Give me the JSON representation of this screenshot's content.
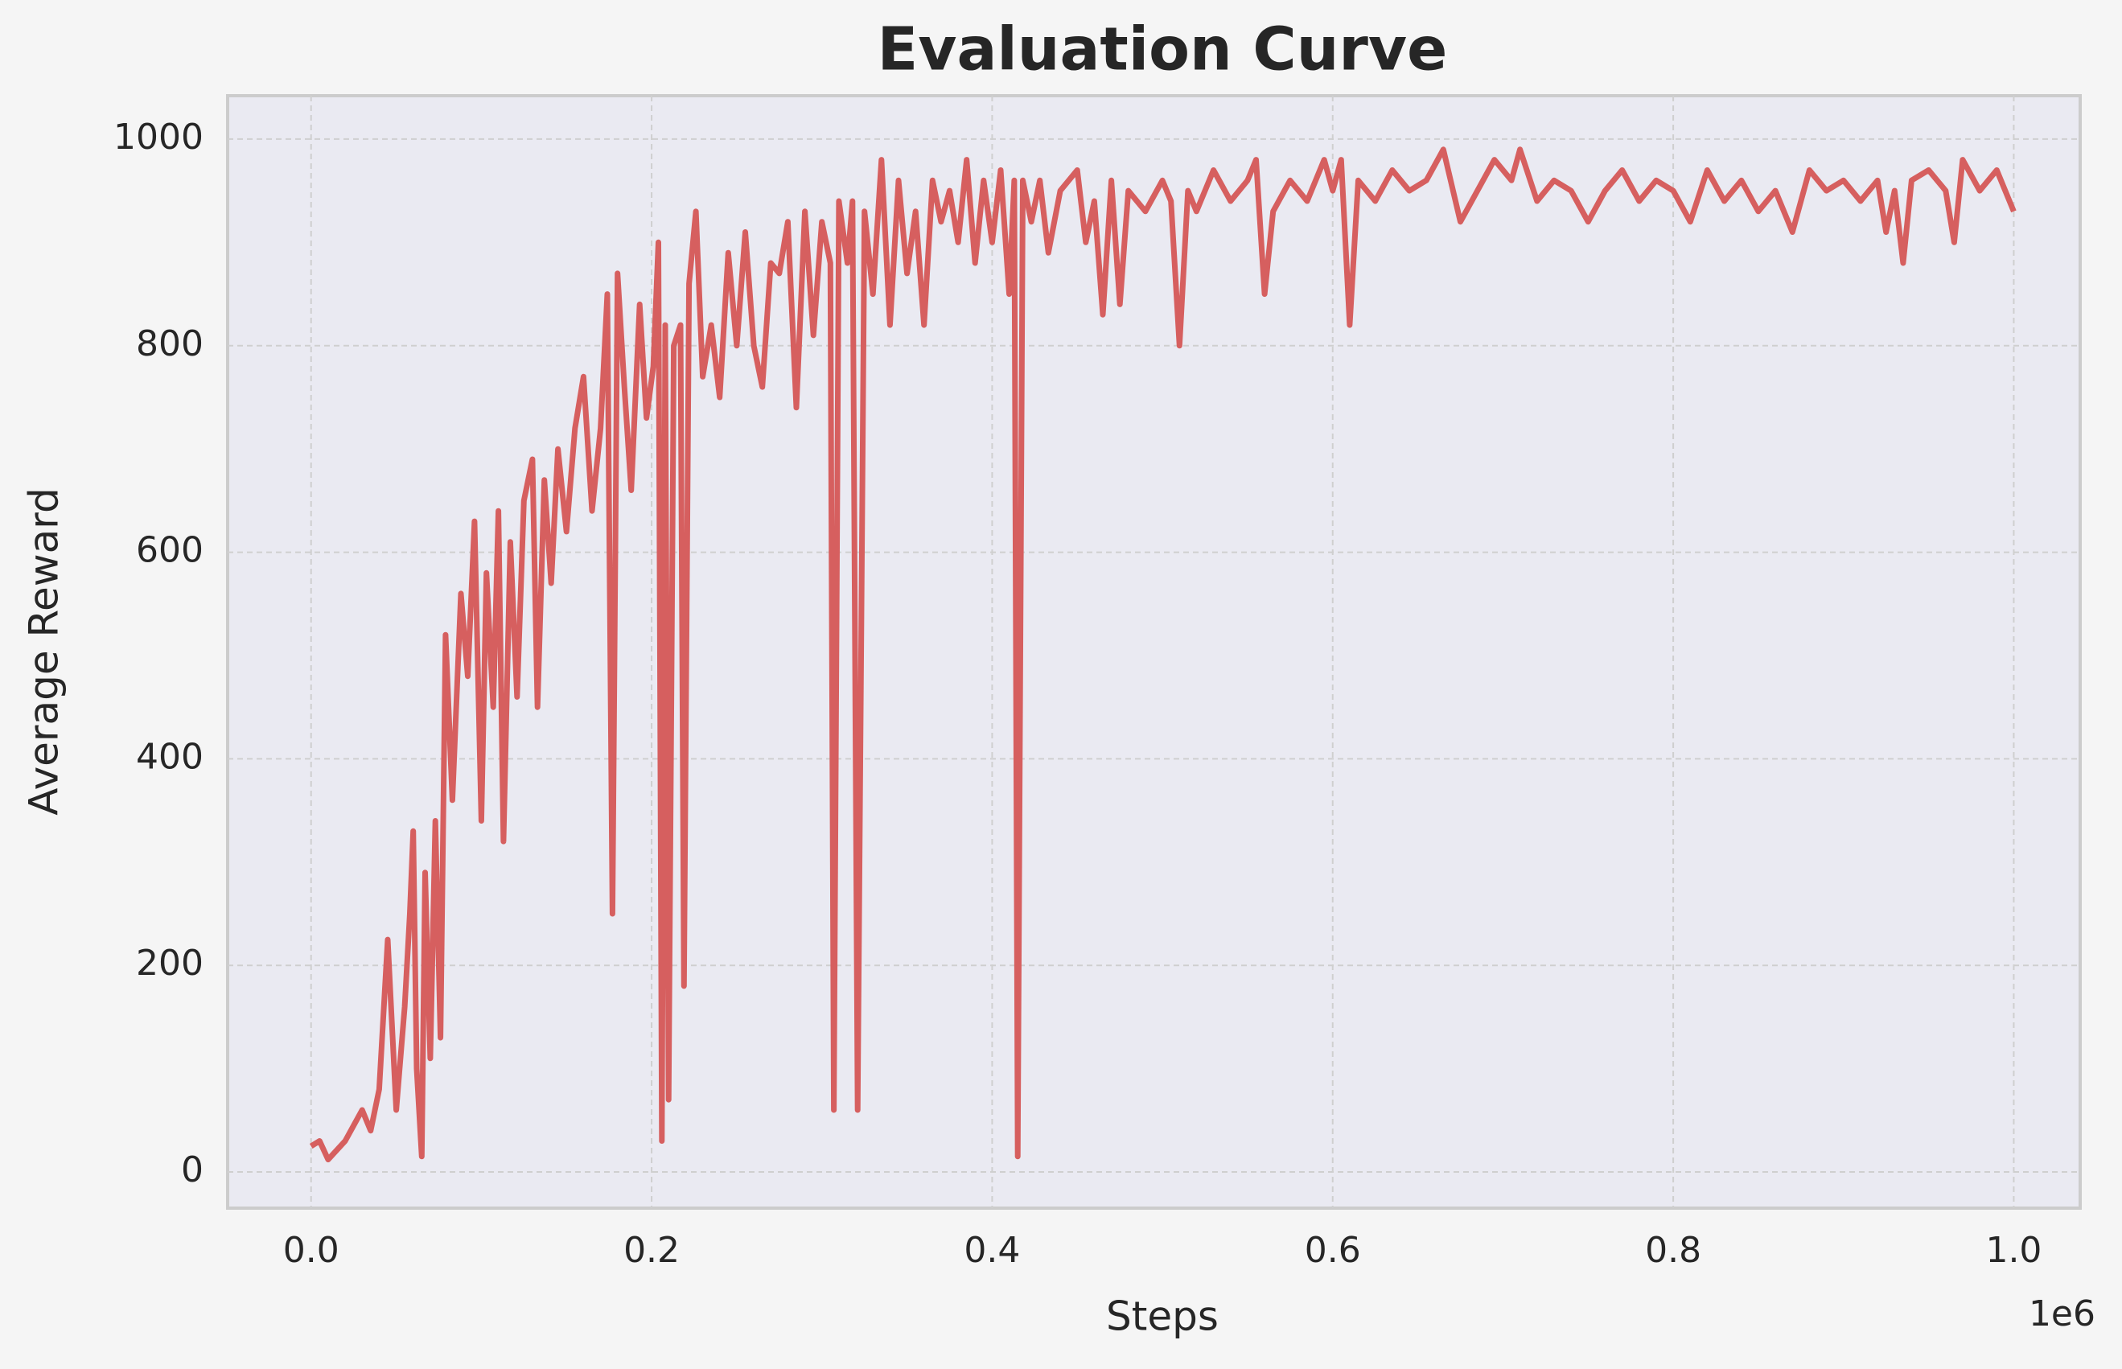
{
  "chart_data": {
    "type": "line",
    "title": "Evaluation Curve",
    "xlabel": "Steps",
    "ylabel": "Average Reward",
    "x_offset_label": "1e6",
    "color": "#d65f5f",
    "grid": true,
    "xlim": [
      -49000,
      1039000
    ],
    "ylim": [
      -35,
      1042
    ],
    "xticks": [
      {
        "value": 0,
        "label": "0.0"
      },
      {
        "value": 200000,
        "label": "0.2"
      },
      {
        "value": 400000,
        "label": "0.4"
      },
      {
        "value": 600000,
        "label": "0.6"
      },
      {
        "value": 800000,
        "label": "0.8"
      },
      {
        "value": 1000000,
        "label": "1.0"
      }
    ],
    "yticks": [
      0,
      200,
      400,
      600,
      800,
      1000
    ],
    "x": [
      0,
      5000,
      10000,
      20000,
      30000,
      35000,
      40000,
      45000,
      50000,
      55000,
      58000,
      60000,
      62000,
      65000,
      67000,
      70000,
      73000,
      76000,
      79000,
      83000,
      88000,
      92000,
      96000,
      100000,
      103000,
      107000,
      110000,
      113000,
      117000,
      121000,
      125000,
      130000,
      133000,
      137000,
      141000,
      145000,
      150000,
      155000,
      160000,
      165000,
      170000,
      174000,
      177000,
      180000,
      184000,
      188000,
      193000,
      197000,
      201000,
      204000,
      206000,
      208000,
      210000,
      213000,
      217000,
      219000,
      222000,
      226000,
      230000,
      235000,
      240000,
      245000,
      250000,
      255000,
      260000,
      265000,
      270000,
      275000,
      280000,
      285000,
      290000,
      295000,
      300000,
      305000,
      307000,
      310000,
      315000,
      318000,
      321000,
      325000,
      330000,
      335000,
      340000,
      345000,
      350000,
      355000,
      360000,
      365000,
      370000,
      375000,
      380000,
      385000,
      390000,
      395000,
      400000,
      405000,
      410000,
      413000,
      415000,
      418000,
      423000,
      428000,
      433000,
      440000,
      450000,
      455000,
      460000,
      465000,
      470000,
      475000,
      480000,
      490000,
      500000,
      505000,
      510000,
      515000,
      520000,
      530000,
      540000,
      550000,
      555000,
      560000,
      565000,
      575000,
      585000,
      595000,
      600000,
      605000,
      610000,
      615000,
      625000,
      635000,
      645000,
      655000,
      665000,
      675000,
      685000,
      695000,
      705000,
      710000,
      720000,
      730000,
      740000,
      750000,
      760000,
      770000,
      780000,
      790000,
      800000,
      810000,
      820000,
      830000,
      840000,
      850000,
      860000,
      870000,
      880000,
      890000,
      900000,
      910000,
      920000,
      925000,
      930000,
      935000,
      940000,
      950000,
      960000,
      965000,
      970000,
      980000,
      990000,
      1000000
    ],
    "values": [
      25,
      30,
      12,
      30,
      60,
      40,
      80,
      225,
      60,
      160,
      250,
      330,
      100,
      15,
      290,
      110,
      340,
      130,
      520,
      360,
      560,
      480,
      630,
      340,
      580,
      450,
      640,
      320,
      610,
      460,
      650,
      690,
      450,
      670,
      570,
      700,
      620,
      720,
      770,
      640,
      720,
      850,
      250,
      870,
      760,
      660,
      840,
      730,
      780,
      900,
      30,
      820,
      70,
      800,
      820,
      180,
      860,
      930,
      770,
      820,
      750,
      890,
      800,
      910,
      800,
      760,
      880,
      870,
      920,
      740,
      930,
      810,
      920,
      880,
      60,
      940,
      880,
      940,
      60,
      930,
      850,
      980,
      820,
      960,
      870,
      930,
      820,
      960,
      920,
      950,
      900,
      980,
      880,
      960,
      900,
      970,
      850,
      960,
      15,
      960,
      920,
      960,
      890,
      950,
      970,
      900,
      940,
      830,
      960,
      840,
      950,
      930,
      960,
      940,
      800,
      950,
      930,
      970,
      940,
      960,
      980,
      850,
      930,
      960,
      940,
      980,
      950,
      980,
      820,
      960,
      940,
      970,
      950,
      960,
      990,
      920,
      950,
      980,
      960,
      990,
      940,
      960,
      950,
      920,
      950,
      970,
      940,
      960,
      950,
      920,
      970,
      940,
      960,
      930,
      950,
      910,
      970,
      950,
      960,
      940,
      960,
      910,
      950,
      880,
      960,
      970,
      950,
      900,
      980,
      950,
      970,
      930
    ]
  }
}
